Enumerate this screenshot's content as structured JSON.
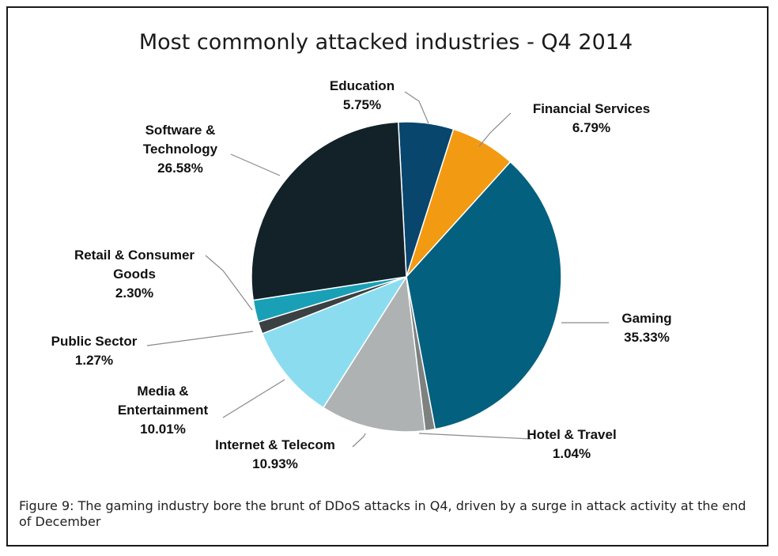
{
  "chart_data": {
    "type": "pie",
    "title": "Most commonly attacked industries - Q4 2014",
    "slices": [
      {
        "label_lines": [
          "Education"
        ],
        "value_text": "5.75%",
        "value": 5.75,
        "color": "#08466e"
      },
      {
        "label_lines": [
          "Financial Services"
        ],
        "value_text": "6.79%",
        "value": 6.79,
        "color": "#f29a12"
      },
      {
        "label_lines": [
          "Gaming"
        ],
        "value_text": "35.33%",
        "value": 35.33,
        "color": "#04607f"
      },
      {
        "label_lines": [
          "Hotel & Travel"
        ],
        "value_text": "1.04%",
        "value": 1.04,
        "color": "#7d8280"
      },
      {
        "label_lines": [
          "Internet & Telecom"
        ],
        "value_text": "10.93%",
        "value": 10.93,
        "color": "#afb2b3"
      },
      {
        "label_lines": [
          "Media &",
          "Entertainment"
        ],
        "value_text": "10.01%",
        "value": 10.01,
        "color": "#8cdcf0"
      },
      {
        "label_lines": [
          "Public Sector"
        ],
        "value_text": "1.27%",
        "value": 1.27,
        "color": "#3b4043"
      },
      {
        "label_lines": [
          "Retail & Consumer",
          "Goods"
        ],
        "value_text": "2.30%",
        "value": 2.3,
        "color": "#19a0b6"
      },
      {
        "label_lines": [
          "Software &",
          "Technology"
        ],
        "value_text": "26.58%",
        "value": 26.58,
        "color": "#132229"
      }
    ]
  },
  "caption": "Figure 9: The gaming industry bore the brunt of DDoS attacks in Q4, driven by a surge in attack activity at the end of December"
}
